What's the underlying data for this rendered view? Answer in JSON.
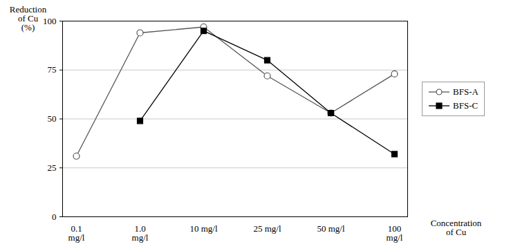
{
  "chart_data": {
    "type": "line",
    "y_label": "Reduction\nof Cu\n(%)",
    "x_label": "Concentration\nof Cu",
    "categories": [
      "0.1\nmg/l",
      "1.0\nmg/l",
      "10 mg/l",
      "25 mg/l",
      "50 mg/l",
      "100\nmg/l"
    ],
    "series": [
      {
        "name": "BFS-A",
        "color": "#555555",
        "marker": "open circle",
        "values": [
          31,
          94,
          97,
          72,
          53,
          73
        ]
      },
      {
        "name": "BFS-C",
        "color": "#000000",
        "marker": "square",
        "values": [
          null,
          49,
          95,
          80,
          53,
          32
        ]
      }
    ],
    "ylim": [
      0,
      100
    ],
    "yticks": [
      0,
      25,
      50,
      75,
      100
    ],
    "grid": true,
    "legend": "right"
  }
}
